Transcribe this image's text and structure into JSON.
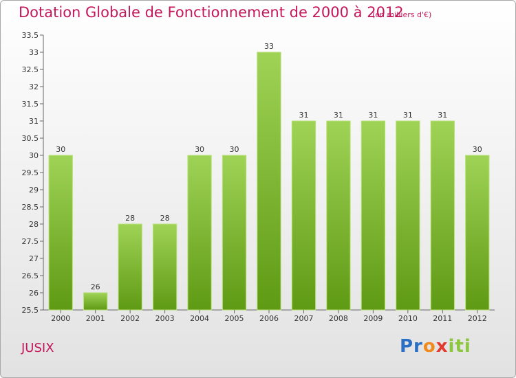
{
  "chart_data": {
    "type": "bar",
    "title": "Dotation Globale de Fonctionnement de 2000 à 2012",
    "subtitle": "(en milliers d'€)",
    "categories": [
      "2000",
      "2001",
      "2002",
      "2003",
      "2004",
      "2005",
      "2006",
      "2007",
      "2008",
      "2009",
      "2010",
      "2011",
      "2012"
    ],
    "values": [
      30,
      26,
      28,
      28,
      30,
      30,
      33,
      31,
      31,
      31,
      31,
      31,
      30
    ],
    "data_labels": [
      "30",
      "26",
      "28",
      "28",
      "30",
      "30",
      "33",
      "31",
      "31",
      "31",
      "31",
      "31",
      "30"
    ],
    "ylim": [
      25.5,
      33.5
    ],
    "y_ticks": [
      "25.5",
      "26",
      "26.5",
      "27",
      "27.5",
      "28",
      "28.5",
      "29",
      "29.5",
      "30",
      "30.5",
      "31",
      "31.5",
      "32",
      "32.5",
      "33",
      "33.5"
    ],
    "grid": false,
    "bar_color": "#8cc63f",
    "xlabel": "",
    "ylabel": ""
  },
  "footer": {
    "commune": "JUSIX",
    "logo_parts": [
      "Pr",
      "o",
      "x",
      "iti"
    ]
  },
  "colors": {
    "title": "#c2185b",
    "bar_top": "#9fd356",
    "bar_bottom": "#5f9a14"
  }
}
